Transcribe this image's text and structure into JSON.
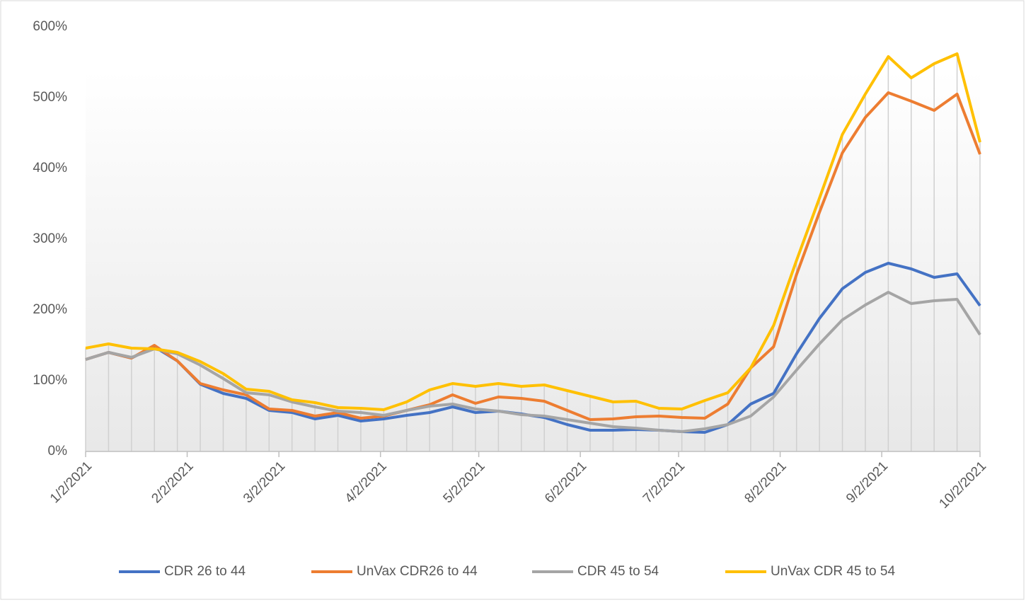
{
  "chart_data": {
    "type": "line",
    "x": [
      "2021-01-02",
      "2021-01-09",
      "2021-01-16",
      "2021-01-23",
      "2021-01-30",
      "2021-02-06",
      "2021-02-13",
      "2021-02-20",
      "2021-02-27",
      "2021-03-06",
      "2021-03-13",
      "2021-03-20",
      "2021-03-27",
      "2021-04-03",
      "2021-04-10",
      "2021-04-17",
      "2021-04-24",
      "2021-05-01",
      "2021-05-08",
      "2021-05-15",
      "2021-05-22",
      "2021-05-29",
      "2021-06-05",
      "2021-06-12",
      "2021-06-19",
      "2021-06-26",
      "2021-07-03",
      "2021-07-10",
      "2021-07-17",
      "2021-07-24",
      "2021-07-31",
      "2021-08-07",
      "2021-08-14",
      "2021-08-21",
      "2021-08-28",
      "2021-09-04",
      "2021-09-11",
      "2021-09-18",
      "2021-09-25",
      "2021-10-02"
    ],
    "series": [
      {
        "name": "CDR 26 to 44",
        "color": "#4472c4",
        "values": [
          130,
          140,
          132,
          148,
          128,
          95,
          82,
          75,
          58,
          55,
          46,
          51,
          43,
          46,
          51,
          55,
          63,
          55,
          57,
          53,
          48,
          38,
          30,
          30,
          31,
          30,
          28,
          27,
          38,
          67,
          82,
          138,
          188,
          230,
          253,
          266,
          258,
          246,
          251,
          206
        ]
      },
      {
        "name": "UnVax CDR26 to 44",
        "color": "#ed7d31",
        "values": [
          130,
          140,
          132,
          150,
          128,
          96,
          87,
          80,
          60,
          58,
          50,
          55,
          47,
          50,
          58,
          66,
          80,
          68,
          77,
          75,
          71,
          58,
          45,
          46,
          49,
          50,
          48,
          47,
          67,
          118,
          148,
          250,
          338,
          422,
          472,
          507,
          495,
          482,
          505,
          420
        ]
      },
      {
        "name": "CDR 45 to 54",
        "color": "#a5a5a5",
        "values": [
          130,
          140,
          133,
          145,
          138,
          122,
          103,
          83,
          80,
          70,
          63,
          57,
          55,
          51,
          58,
          64,
          67,
          60,
          57,
          52,
          50,
          45,
          40,
          35,
          33,
          30,
          28,
          32,
          38,
          50,
          77,
          115,
          152,
          186,
          207,
          225,
          209,
          213,
          215,
          165
        ]
      },
      {
        "name": "UnVax CDR 45 to 54",
        "color": "#ffc000",
        "values": [
          146,
          152,
          146,
          145,
          140,
          127,
          110,
          88,
          85,
          73,
          69,
          62,
          61,
          59,
          70,
          87,
          96,
          92,
          96,
          92,
          94,
          86,
          78,
          70,
          71,
          61,
          60,
          72,
          83,
          118,
          178,
          270,
          358,
          448,
          505,
          558,
          528,
          548,
          562,
          437
        ]
      }
    ],
    "xlim": [
      "2021-01-02",
      "2021-10-02"
    ],
    "xticks": [
      {
        "value": "2021-01-02",
        "label": "1/2/2021"
      },
      {
        "value": "2021-02-02",
        "label": "2/2/2021"
      },
      {
        "value": "2021-03-02",
        "label": "3/2/2021"
      },
      {
        "value": "2021-04-02",
        "label": "4/2/2021"
      },
      {
        "value": "2021-05-02",
        "label": "5/2/2021"
      },
      {
        "value": "2021-06-02",
        "label": "6/2/2021"
      },
      {
        "value": "2021-07-02",
        "label": "7/2/2021"
      },
      {
        "value": "2021-08-02",
        "label": "8/2/2021"
      },
      {
        "value": "2021-09-02",
        "label": "9/2/2021"
      },
      {
        "value": "2021-10-02",
        "label": "10/2/2021"
      }
    ],
    "ylim": [
      0,
      600
    ],
    "yticks": [
      {
        "value": 0,
        "label": "0%"
      },
      {
        "value": 100,
        "label": "100%"
      },
      {
        "value": 200,
        "label": "200%"
      },
      {
        "value": 300,
        "label": "300%"
      },
      {
        "value": 400,
        "label": "400%"
      },
      {
        "value": 500,
        "label": "500%"
      },
      {
        "value": 600,
        "label": "600%"
      }
    ],
    "drop_lines": true,
    "legend": "bottom"
  }
}
